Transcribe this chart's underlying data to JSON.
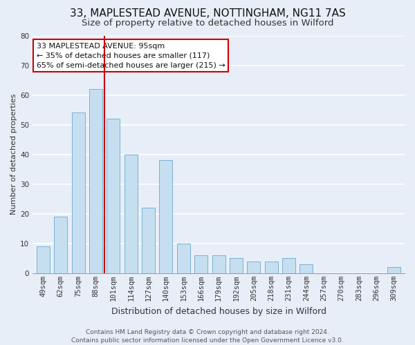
{
  "title": "33, MAPLESTEAD AVENUE, NOTTINGHAM, NG11 7AS",
  "subtitle": "Size of property relative to detached houses in Wilford",
  "xlabel": "Distribution of detached houses by size in Wilford",
  "ylabel": "Number of detached properties",
  "categories": [
    "49sqm",
    "62sqm",
    "75sqm",
    "88sqm",
    "101sqm",
    "114sqm",
    "127sqm",
    "140sqm",
    "153sqm",
    "166sqm",
    "179sqm",
    "192sqm",
    "205sqm",
    "218sqm",
    "231sqm",
    "244sqm",
    "257sqm",
    "270sqm",
    "283sqm",
    "296sqm",
    "309sqm"
  ],
  "values": [
    9,
    19,
    54,
    62,
    52,
    40,
    22,
    38,
    10,
    6,
    6,
    5,
    4,
    4,
    5,
    3,
    0,
    0,
    0,
    0,
    2
  ],
  "bar_color": "#c5dff0",
  "bar_edge_color": "#7ab0d4",
  "vline_color": "#cc0000",
  "ylim": [
    0,
    80
  ],
  "yticks": [
    0,
    10,
    20,
    30,
    40,
    50,
    60,
    70,
    80
  ],
  "annotation_title": "33 MAPLESTEAD AVENUE: 95sqm",
  "annotation_line1": "← 35% of detached houses are smaller (117)",
  "annotation_line2": "65% of semi-detached houses are larger (215) →",
  "annotation_box_color": "#ffffff",
  "annotation_box_edge_color": "#cc0000",
  "footer_line1": "Contains HM Land Registry data © Crown copyright and database right 2024.",
  "footer_line2": "Contains public sector information licensed under the Open Government Licence v3.0.",
  "background_color": "#e8eef8",
  "grid_color": "#ffffff",
  "title_fontsize": 11,
  "subtitle_fontsize": 9.5,
  "xlabel_fontsize": 9,
  "ylabel_fontsize": 8,
  "tick_fontsize": 7.5,
  "annotation_fontsize": 8,
  "footer_fontsize": 6.5
}
